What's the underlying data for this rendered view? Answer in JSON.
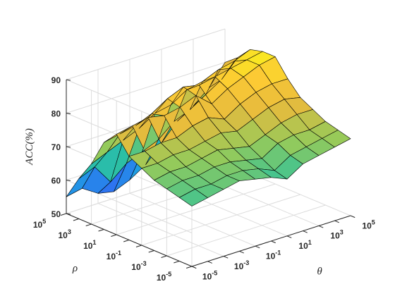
{
  "chart_data": {
    "type": "surface",
    "xlabel": "θ",
    "ylabel": "ρ",
    "zlabel": "ACC(%)",
    "xscale": "log",
    "yscale": "log",
    "x_exponents": [
      -5,
      -4,
      -3,
      -2,
      -1,
      0,
      1,
      2,
      3,
      4,
      5
    ],
    "y_exponents": [
      -5,
      -4,
      -3,
      -2,
      -1,
      0,
      1,
      2,
      3,
      4,
      5
    ],
    "x_tick_labels": [
      {
        "exp": -5,
        "base": "10",
        "sup": "-5"
      },
      {
        "exp": -3,
        "base": "10",
        "sup": "-3"
      },
      {
        "exp": -1,
        "base": "10",
        "sup": "-1"
      },
      {
        "exp": 1,
        "base": "10",
        "sup": "1"
      },
      {
        "exp": 3,
        "base": "10",
        "sup": "3"
      },
      {
        "exp": 5,
        "base": "10",
        "sup": "5"
      }
    ],
    "y_tick_labels": [
      {
        "exp": -5,
        "base": "10",
        "sup": "-5"
      },
      {
        "exp": -3,
        "base": "10",
        "sup": "-3"
      },
      {
        "exp": -1,
        "base": "10",
        "sup": "-1"
      },
      {
        "exp": 1,
        "base": "10",
        "sup": "1"
      },
      {
        "exp": 3,
        "base": "10",
        "sup": "3"
      },
      {
        "exp": 5,
        "base": "10",
        "sup": "5"
      }
    ],
    "z_ticks": [
      50,
      60,
      70,
      80,
      90
    ],
    "zlim": [
      50,
      90
    ],
    "colormap": [
      "#3e26a8",
      "#2f6ef2",
      "#1caadf",
      "#2ec29d",
      "#96ca5a",
      "#e6bb3d",
      "#fcca34",
      "#f9fb15"
    ],
    "z_values": [
      [
        68,
        69,
        70,
        71,
        70,
        69,
        67,
        70,
        71,
        72,
        73
      ],
      [
        69,
        70,
        70,
        71,
        71,
        70,
        68,
        71,
        72,
        73,
        74
      ],
      [
        70,
        71,
        71,
        72,
        72,
        71,
        70,
        73,
        74,
        74,
        75
      ],
      [
        71,
        72,
        72,
        73,
        74,
        73,
        72,
        74,
        76,
        77,
        77
      ],
      [
        73,
        73,
        74,
        74,
        75,
        76,
        75,
        77,
        79,
        80,
        79
      ],
      [
        75,
        75,
        76,
        76,
        78,
        79,
        77,
        80,
        82,
        83,
        83
      ],
      [
        80,
        81,
        82,
        81,
        82,
        84,
        80,
        83,
        85,
        87,
        88
      ],
      [
        76,
        77,
        78,
        80,
        83,
        85,
        84,
        85,
        86,
        87,
        88
      ],
      [
        68,
        70,
        72,
        74,
        77,
        78,
        81,
        82,
        84,
        85,
        87
      ],
      [
        62,
        64,
        58,
        62,
        64,
        66,
        70,
        72,
        75,
        78,
        83
      ],
      [
        55,
        56,
        53,
        52,
        54,
        57,
        62,
        67,
        70,
        74,
        80
      ]
    ]
  }
}
